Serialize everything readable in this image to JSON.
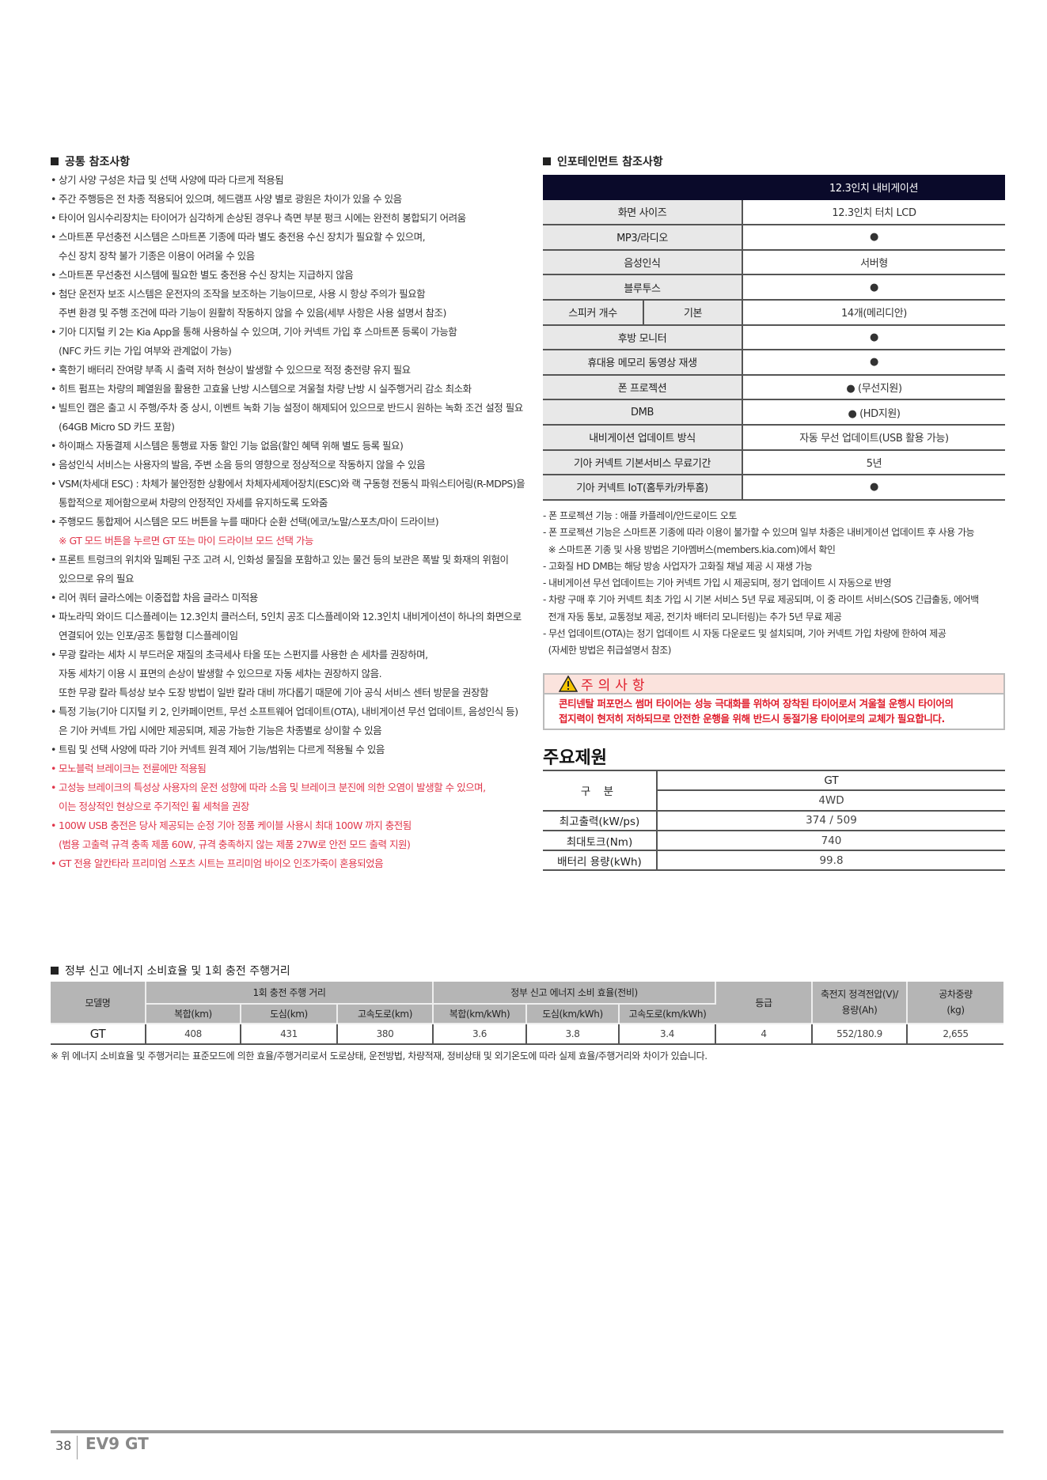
{
  "common": {
    "heading": "공통 참조사항",
    "items": [
      {
        "lines": [
          "상기 사양 구성은 차급 및 선택 사양에 따라 다르게 적용됨"
        ]
      },
      {
        "lines": [
          "주간 주행등은 전 차종 적용되어 있으며, 헤드램프 사양 별로 광원은 차이가 있을 수 있음"
        ]
      },
      {
        "lines": [
          "타이어 임시수리장치는 타이어가 심각하게 손상된 경우나 측면 부분 펑크 시에는 완전히 봉합되기 어려움"
        ]
      },
      {
        "lines": [
          "스마트폰 무선충전 시스템은 스마트폰 기종에 따라 별도 충전용 수신 장치가 필요할 수 있으며,",
          "수신 장치 장착 불가 기종은 이용이 어려울 수 있음"
        ]
      },
      {
        "lines": [
          "스마트폰 무선충전 시스템에 필요한 별도 충전용 수신 장치는 지급하지 않음"
        ]
      },
      {
        "lines": [
          "첨단 운전자 보조 시스템은 운전자의 조작을 보조하는 기능이므로, 사용 시 항상 주의가 필요함",
          "주변 환경 및 주행 조건에 따라 기능이 원활히 작동하지 않을 수 있음(세부 사항은 사용 설명서 참조)"
        ]
      },
      {
        "lines": [
          "기아 디지털 키 2는 Kia App을 통해 사용하실 수 있으며, 기아 커넥트 가입 후 스마트폰 등록이 가능함",
          "(NFC 카드 키는 가입 여부와 관계없이 가능)"
        ]
      },
      {
        "lines": [
          "혹한기 배터리 잔여량 부족 시 출력 저하 현상이 발생할 수 있으므로 적정 충전량 유지 필요"
        ]
      },
      {
        "lines": [
          "히트 펌프는 차량의 폐열원을 활용한 고효율 난방 시스템으로 겨울철 차량 난방 시 실주행거리 감소 최소화"
        ]
      },
      {
        "lines": [
          "빌트인 캠은 출고 시 주행/주차 중 상시, 이벤트 녹화 기능 설정이 해제되어 있으므로 반드시 원하는 녹화 조건 설정 필요",
          "(64GB Micro SD 카드 포함)"
        ]
      },
      {
        "lines": [
          "하이패스 자동결제 시스템은 통행료 자동 할인 기능 없음(할인 혜택 위해 별도 등록 필요)"
        ]
      },
      {
        "lines": [
          "음성인식 서비스는 사용자의 발음, 주변 소음 등의 영향으로 정상적으로 작동하지 않을 수 있음"
        ]
      },
      {
        "lines": [
          "VSM(차세대 ESC) : 차체가 불안정한 상황에서 차체자세제어장치(ESC)와 랙 구동형 전동식 파워스티어링(R-MDPS)을",
          "통합적으로 제어함으로써 차량의 안정적인 자세를 유지하도록 도와줌"
        ]
      },
      {
        "lines": [
          "주행모드 통합제어 시스템은 모드 버튼을 누를 때마다 순환 선택(에코/노말/스포츠/마이 드라이브)"
        ],
        "note": "※ GT 모드 버튼을 누르면 GT 또는 마이 드라이브 모드 선택 가능"
      },
      {
        "lines": [
          "프론트 트렁크의 위치와 밀폐된 구조 고려 시, 인화성 물질을 포함하고 있는 물건 등의 보관은 폭발 및 화재의 위험이",
          "있으므로 유의 필요"
        ]
      },
      {
        "lines": [
          "리어 쿼터 글라스에는 이중접합 차음 글라스 미적용"
        ]
      },
      {
        "lines": [
          "파노라믹 와이드 디스플레이는 12.3인치 클러스터, 5인치 공조 디스플레이와 12.3인치 내비게이션이 하나의 화면으로",
          "연결되어 있는 인포/공조 통합형 디스플레이임"
        ]
      },
      {
        "lines": [
          "무광 칼라는 세차 시 부드러운 재질의 초극세사 타올 또는 스펀지를 사용한 손 세차를 권장하며,",
          "자동 세차기 이용 시 표면의 손상이 발생할 수 있으므로 자동 세차는 권장하지 않음.",
          "또한 무광 칼라 특성상 보수 도장 방법이 일반 칼라 대비 까다롭기 때문에 기아 공식 서비스 센터 방문을 권장함"
        ]
      },
      {
        "lines": [
          "특정 기능(기아 디지털 키 2, 인카페이먼트, 무선 소프트웨어 업데이트(OTA), 내비게이션 무선 업데이트, 음성인식 등)",
          "은 기아 커넥트 가입 시에만 제공되며, 제공 가능한 기능은 차종별로 상이할 수 있음"
        ]
      },
      {
        "lines": [
          "트림 및 선택 사양에 따라 기아 커넥트 원격 제어 기능/범위는 다르게 적용될 수 있음"
        ]
      },
      {
        "lines": [
          "모노블럭 브레이크는 전륜에만 적용됨"
        ],
        "red": true
      },
      {
        "lines": [
          "고성능 브레이크의 특성상 사용자의 운전 성향에 따라 소음 및 브레이크 분진에 의한 오염이 발생할 수 있으며,",
          "이는 정상적인 현상으로 주기적인 휠 세척을 권장"
        ],
        "red": true
      },
      {
        "lines": [
          "100W USB 충전은 당사 제공되는 순정 기아 정품 케이블 사용시 최대 100W 까지 충전됨",
          "(범용 고출력 규격 충족 제품 60W, 규격 충족하지 않는 제품 27W로 안전 모드 출력 지원)"
        ],
        "red": true
      },
      {
        "lines": [
          "GT 전용 알칸타라 프리미엄 스포츠 시트는 프리미엄 바이오 인조가죽이 혼용되었음"
        ],
        "red": true
      }
    ]
  },
  "infotainment": {
    "heading": "인포테인먼트 참조사항",
    "column_header": "12.3인치 내비게이션",
    "rows": [
      {
        "label": "화면 사이즈",
        "value": "12.3인치 터치 LCD"
      },
      {
        "label": "MP3/라디오",
        "value": "●"
      },
      {
        "label": "음성인식",
        "value": "서버형"
      },
      {
        "label": "블루투스",
        "value": "●"
      },
      {
        "label": "스피커 개수",
        "sublabel": "기본",
        "value": "14개(메리디안)"
      },
      {
        "label": "후방 모니터",
        "value": "●"
      },
      {
        "label": "휴대용 메모리 동영상 재생",
        "value": "●"
      },
      {
        "label": "폰 프로젝션",
        "value": "● (무선지원)"
      },
      {
        "label": "DMB",
        "value": "● (HD지원)"
      },
      {
        "label": "내비게이션 업데이트 방식",
        "value": "자동 무선 업데이트(USB 활용 가능)"
      },
      {
        "label": "기아 커넥트 기본서비스 무료기간",
        "value": "5년"
      },
      {
        "label": "기아 커넥트 IoT(홈투카/카투홈)",
        "value": "●"
      }
    ],
    "notes": [
      "- 폰 프로젝션 기능 : 애플 카플레이/안드로이드 오토",
      "- 폰 프로젝션 기능은 스마트폰 기종에 따라 이용이 불가할 수 있으며 일부 차종은 내비게이션 업데이트 후 사용 가능",
      "  ※ 스마트폰 기종 및 사용 방법은 기아멤버스(members.kia.com)에서 확인",
      "- 고화질 HD DMB는 해당 방송 사업자가 고화질 채널 제공 시 재생 가능",
      "- 내비게이션 무선 업데이트는 기아 커넥트 가입 시 제공되며, 정기 업데이트 시 자동으로 반영",
      "- 차량 구매 후 기아 커넥트 최초 가입 시 기본 서비스 5년 무료 제공되며, 이 중 라이트 서비스(SOS 긴급출동, 에어백",
      "  전개 자동 통보, 교통정보 제공, 전기차 배터리 모니터링)는 추가 5년 무료 제공",
      "- 무선 업데이트(OTA)는 정기 업데이트 시 자동 다운로드 및 설치되며, 기아 커넥트 가입 차량에 한하여 제공",
      "  (자세한 방법은 취급설명서 참조)"
    ]
  },
  "caution": {
    "icon": "warning-triangle-icon",
    "title": "주의사항",
    "lines": [
      "콘티넨탈 퍼포먼스 썸머 타이어는 성능 극대화를 위하여 장착된 타이어로서 겨울철 운행시 타이어의",
      "접지력이 현저히 저하되므로 안전한 운행을 위해 반드시 동절기용 타이어로의 교체가 필요합니다."
    ]
  },
  "specs": {
    "title": "주요제원",
    "category_label": "구 분",
    "trim": "GT",
    "drive": "4WD",
    "rows": [
      {
        "label": "최고출력(kW/ps)",
        "value": "374 / 509"
      },
      {
        "label": "최대토크(Nm)",
        "value": "740"
      },
      {
        "label": "배터리 용량(kWh)",
        "value": "99.8"
      }
    ]
  },
  "energy": {
    "heading": "정부 신고 에너지 소비효율 및 1회 충전 주행거리",
    "headers": {
      "model": "모델명",
      "range_group": "1회 충전 주행 거리",
      "efficiency_group": "정부 신고 에너지 소비 효율(전비)",
      "range_cols": [
        "복합(km)",
        "도심(km)",
        "고속도로(km)"
      ],
      "eff_cols": [
        "복합(km/kWh)",
        "도심(km/kWh)",
        "고속도로(km/kWh)"
      ],
      "grade": "등급",
      "battery_line1": "축전지 정격전압(V)/",
      "battery_line2": "용량(Ah)",
      "weight_line1": "공차중량",
      "weight_line2": "(kg)"
    },
    "row": {
      "model": "GT",
      "range": [
        "408",
        "431",
        "380"
      ],
      "eff": [
        "3.6",
        "3.8",
        "3.4"
      ],
      "grade": "4",
      "battery": "552/180.9",
      "weight": "2,655"
    },
    "footnote": "※ 위 에너지 소비효율 및 주행거리는 표준모드에 의한 효율/주행거리로서 도로상태, 운전방법, 차량적재, 정비상태 및 외기온도에 따라 실제 효율/주행거리와 차이가 있습니다."
  },
  "footer": {
    "page_number": "38",
    "title": "EV9 GT"
  },
  "colors": {
    "navy": "#0a0a2a",
    "red": "#e0354a",
    "caution_bg": "#fbe3dd",
    "header_gray": "#b5b5b5"
  }
}
